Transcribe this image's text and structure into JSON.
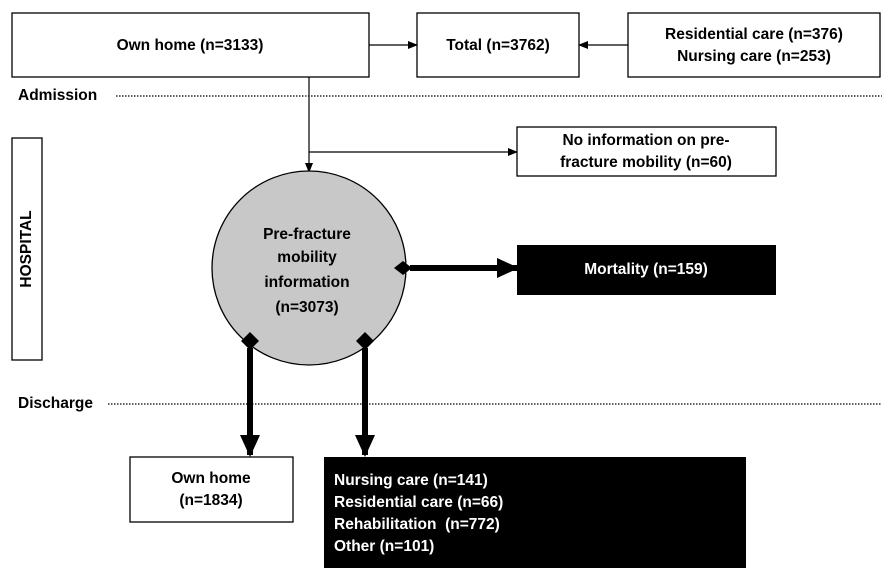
{
  "nodes": [
    {
      "lines": [
        "Own home (n=3133)"
      ]
    },
    {
      "lines": [
        "Total (n=3762)"
      ]
    },
    {
      "lines": [
        "Residential care (n=376)",
        "Nursing care (n=253)"
      ]
    },
    {
      "lines": [
        "No information on pre-",
        "fracture mobility (n=60)"
      ]
    },
    {
      "lines": [
        "Pre-fracture",
        "mobility",
        "information",
        "(n=3073)"
      ]
    },
    {
      "lines": [
        "Mortality (n=159)"
      ]
    },
    {
      "lines": [
        "Own home",
        "(n=1834)"
      ]
    },
    {
      "lines": [
        "Nursing care (n=141)",
        "Residential care (n=66)",
        "Rehabilitation  (n=772)",
        "Other (n=101)"
      ]
    }
  ],
  "stages": [
    "Admission",
    "Discharge"
  ],
  "section": "HOSPITAL"
}
